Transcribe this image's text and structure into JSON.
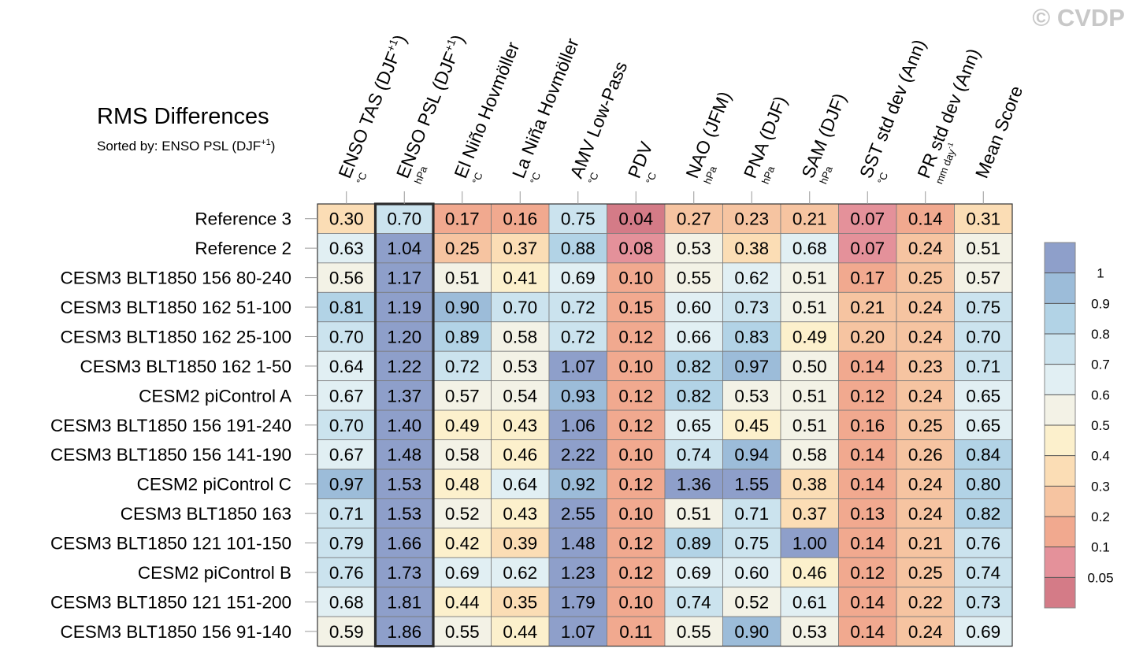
{
  "watermark": "© CVDP",
  "chart_data": {
    "type": "heatmap",
    "title": "RMS Differences",
    "subtitle_prefix": "Sorted by: ENSO PSL (DJF",
    "subtitle_sup": "+1",
    "subtitle_suffix": ")",
    "sorted_column_index": 1,
    "columns": [
      {
        "label": "ENSO TAS (DJF",
        "sup": "+1",
        "tail": ")",
        "unit": "°C",
        "unit_sup": ""
      },
      {
        "label": "ENSO PSL (DJF",
        "sup": "+1",
        "tail": ")",
        "unit": "hPa",
        "unit_sup": ""
      },
      {
        "label": "El Niño Hovmöller",
        "sup": "",
        "tail": "",
        "unit": "°C",
        "unit_sup": ""
      },
      {
        "label": "La Niña Hovmöller",
        "sup": "",
        "tail": "",
        "unit": "°C",
        "unit_sup": ""
      },
      {
        "label": "AMV Low-Pass",
        "sup": "",
        "tail": "",
        "unit": "°C",
        "unit_sup": ""
      },
      {
        "label": "PDV",
        "sup": "",
        "tail": "",
        "unit": "°C",
        "unit_sup": ""
      },
      {
        "label": "NAO (JFM)",
        "sup": "",
        "tail": "",
        "unit": "hPa",
        "unit_sup": ""
      },
      {
        "label": "PNA (DJF)",
        "sup": "",
        "tail": "",
        "unit": "hPa",
        "unit_sup": ""
      },
      {
        "label": "SAM (DJF)",
        "sup": "",
        "tail": "",
        "unit": "hPa",
        "unit_sup": ""
      },
      {
        "label": "SST std dev (Ann)",
        "sup": "",
        "tail": "",
        "unit": "°C",
        "unit_sup": ""
      },
      {
        "label": "PR std dev (Ann)",
        "sup": "",
        "tail": "",
        "unit": "mm day",
        "unit_sup": "-1"
      },
      {
        "label": "Mean Score",
        "sup": "",
        "tail": "",
        "unit": "",
        "unit_sup": ""
      }
    ],
    "rows": [
      "Reference 3",
      "Reference 2",
      "CESM3 BLT1850 156 80-240",
      "CESM3 BLT1850 162 51-100",
      "CESM3 BLT1850 162 25-100",
      "CESM3 BLT1850 162 1-50",
      "CESM2 piControl A",
      "CESM3 BLT1850 156 191-240",
      "CESM3 BLT1850 156 141-190",
      "CESM2 piControl C",
      "CESM3 BLT1850 163",
      "CESM3 BLT1850 121 101-150",
      "CESM2 piControl B",
      "CESM3 BLT1850 121 151-200",
      "CESM3 BLT1850 156 91-140"
    ],
    "values": [
      [
        "0.30",
        "0.70",
        "0.17",
        "0.16",
        "0.75",
        "0.04",
        "0.27",
        "0.23",
        "0.21",
        "0.07",
        "0.14",
        "0.31"
      ],
      [
        "0.63",
        "1.04",
        "0.25",
        "0.37",
        "0.88",
        "0.08",
        "0.53",
        "0.38",
        "0.68",
        "0.07",
        "0.24",
        "0.51"
      ],
      [
        "0.56",
        "1.17",
        "0.51",
        "0.41",
        "0.69",
        "0.10",
        "0.55",
        "0.62",
        "0.51",
        "0.17",
        "0.25",
        "0.57"
      ],
      [
        "0.81",
        "1.19",
        "0.90",
        "0.70",
        "0.72",
        "0.15",
        "0.60",
        "0.73",
        "0.51",
        "0.21",
        "0.24",
        "0.75"
      ],
      [
        "0.70",
        "1.20",
        "0.89",
        "0.58",
        "0.72",
        "0.12",
        "0.66",
        "0.83",
        "0.49",
        "0.20",
        "0.24",
        "0.70"
      ],
      [
        "0.64",
        "1.22",
        "0.72",
        "0.53",
        "1.07",
        "0.10",
        "0.82",
        "0.97",
        "0.50",
        "0.14",
        "0.23",
        "0.71"
      ],
      [
        "0.67",
        "1.37",
        "0.57",
        "0.54",
        "0.93",
        "0.12",
        "0.82",
        "0.53",
        "0.51",
        "0.12",
        "0.24",
        "0.65"
      ],
      [
        "0.70",
        "1.40",
        "0.49",
        "0.43",
        "1.06",
        "0.12",
        "0.65",
        "0.45",
        "0.51",
        "0.16",
        "0.25",
        "0.65"
      ],
      [
        "0.67",
        "1.48",
        "0.58",
        "0.46",
        "2.22",
        "0.10",
        "0.74",
        "0.94",
        "0.58",
        "0.14",
        "0.26",
        "0.84"
      ],
      [
        "0.97",
        "1.53",
        "0.48",
        "0.64",
        "0.92",
        "0.12",
        "1.36",
        "1.55",
        "0.38",
        "0.14",
        "0.24",
        "0.80"
      ],
      [
        "0.71",
        "1.53",
        "0.52",
        "0.43",
        "2.55",
        "0.10",
        "0.51",
        "0.71",
        "0.37",
        "0.13",
        "0.24",
        "0.82"
      ],
      [
        "0.79",
        "1.66",
        "0.42",
        "0.39",
        "1.48",
        "0.12",
        "0.89",
        "0.75",
        "1.00",
        "0.14",
        "0.21",
        "0.76"
      ],
      [
        "0.76",
        "1.73",
        "0.69",
        "0.62",
        "1.23",
        "0.12",
        "0.69",
        "0.60",
        "0.46",
        "0.12",
        "0.25",
        "0.74"
      ],
      [
        "0.68",
        "1.81",
        "0.44",
        "0.35",
        "1.79",
        "0.10",
        "0.74",
        "0.52",
        "0.61",
        "0.14",
        "0.22",
        "0.73"
      ],
      [
        "0.59",
        "1.86",
        "0.55",
        "0.44",
        "1.07",
        "0.11",
        "0.55",
        "0.90",
        "0.53",
        "0.14",
        "0.24",
        "0.69"
      ]
    ],
    "colorbar": {
      "levels": [
        "1",
        "0.9",
        "0.8",
        "0.7",
        "0.6",
        "0.5",
        "0.4",
        "0.3",
        "0.2",
        "0.1",
        "0.05"
      ],
      "colors": [
        "#d47b87",
        "#e4919a",
        "#f1a98f",
        "#f6c4a1",
        "#fbddb5",
        "#fcf0cc",
        "#f3f2e6",
        "#e1eff3",
        "#cbe3ee",
        "#b2d3e6",
        "#9cbcd9",
        "#8e9fca"
      ]
    }
  }
}
